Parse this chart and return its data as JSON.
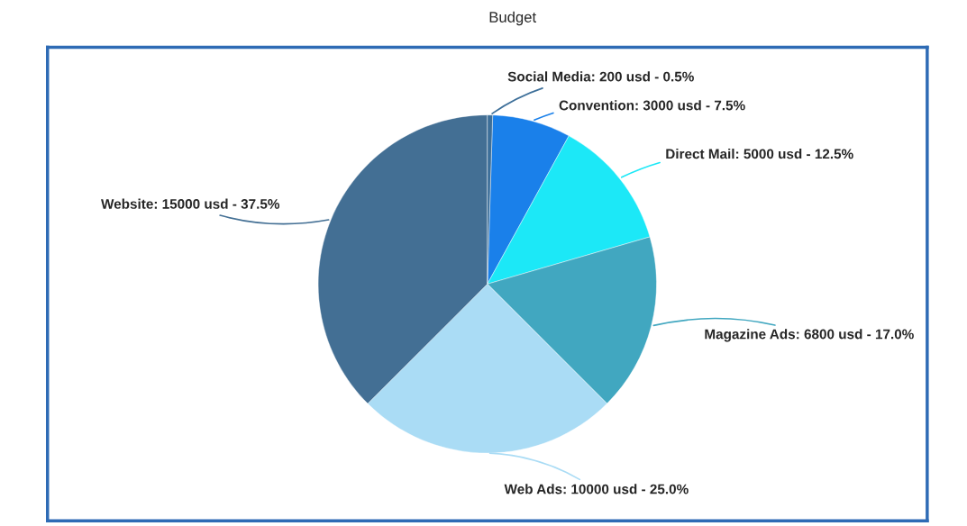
{
  "chart_data": {
    "type": "pie",
    "title": "Budget",
    "categories": [
      "Social Media",
      "Convention",
      "Direct Mail",
      "Magazine Ads",
      "Web Ads",
      "Website"
    ],
    "values": [
      200,
      3000,
      5000,
      6800,
      10000,
      15000
    ],
    "colors": [
      "#3d6f99",
      "#1a80ea",
      "#1ce8f7",
      "#41a7c0",
      "#aadcf5",
      "#436f94"
    ],
    "value_labels": [
      "200 usd - 0.5%",
      "3000 usd - 7.5%",
      "5000 usd - 12.5%",
      "6800 usd - 17.0%",
      "10000 usd - 25.0%",
      "15000 usd - 37.5%"
    ]
  }
}
